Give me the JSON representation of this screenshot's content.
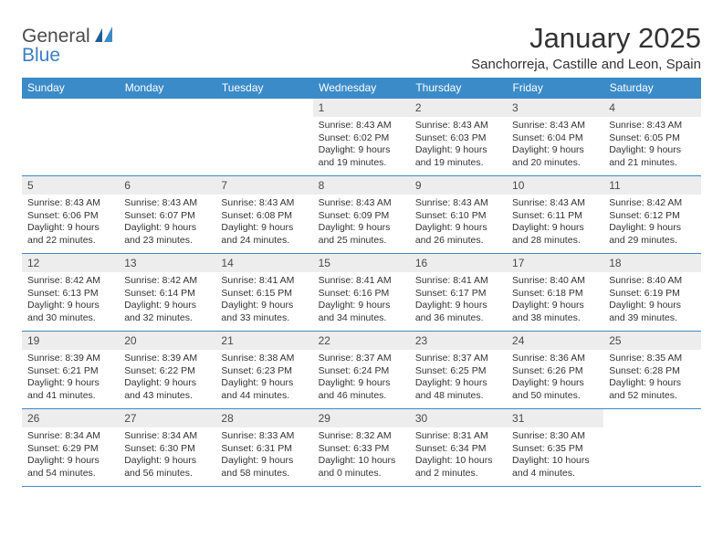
{
  "logo": {
    "part1": "General",
    "part2": "Blue"
  },
  "title": "January 2025",
  "location": "Sanchorreja, Castille and Leon, Spain",
  "colors": {
    "header_row": "#3b8bc9",
    "header_text": "#ffffff",
    "daynum_bg": "#ededed",
    "border": "#3b8bc9",
    "text": "#333333",
    "logo_gray": "#4a4a4a",
    "logo_blue": "#3b7fc4",
    "background": "#ffffff"
  },
  "weekdays": [
    "Sunday",
    "Monday",
    "Tuesday",
    "Wednesday",
    "Thursday",
    "Friday",
    "Saturday"
  ],
  "table": {
    "font_size_header": 12,
    "font_size_daynum": 12,
    "font_size_body": 10.5
  },
  "weeks": [
    [
      {
        "n": "",
        "t": ""
      },
      {
        "n": "",
        "t": ""
      },
      {
        "n": "",
        "t": ""
      },
      {
        "n": "1",
        "t": "Sunrise: 8:43 AM\nSunset: 6:02 PM\nDaylight: 9 hours and 19 minutes."
      },
      {
        "n": "2",
        "t": "Sunrise: 8:43 AM\nSunset: 6:03 PM\nDaylight: 9 hours and 19 minutes."
      },
      {
        "n": "3",
        "t": "Sunrise: 8:43 AM\nSunset: 6:04 PM\nDaylight: 9 hours and 20 minutes."
      },
      {
        "n": "4",
        "t": "Sunrise: 8:43 AM\nSunset: 6:05 PM\nDaylight: 9 hours and 21 minutes."
      }
    ],
    [
      {
        "n": "5",
        "t": "Sunrise: 8:43 AM\nSunset: 6:06 PM\nDaylight: 9 hours and 22 minutes."
      },
      {
        "n": "6",
        "t": "Sunrise: 8:43 AM\nSunset: 6:07 PM\nDaylight: 9 hours and 23 minutes."
      },
      {
        "n": "7",
        "t": "Sunrise: 8:43 AM\nSunset: 6:08 PM\nDaylight: 9 hours and 24 minutes."
      },
      {
        "n": "8",
        "t": "Sunrise: 8:43 AM\nSunset: 6:09 PM\nDaylight: 9 hours and 25 minutes."
      },
      {
        "n": "9",
        "t": "Sunrise: 8:43 AM\nSunset: 6:10 PM\nDaylight: 9 hours and 26 minutes."
      },
      {
        "n": "10",
        "t": "Sunrise: 8:43 AM\nSunset: 6:11 PM\nDaylight: 9 hours and 28 minutes."
      },
      {
        "n": "11",
        "t": "Sunrise: 8:42 AM\nSunset: 6:12 PM\nDaylight: 9 hours and 29 minutes."
      }
    ],
    [
      {
        "n": "12",
        "t": "Sunrise: 8:42 AM\nSunset: 6:13 PM\nDaylight: 9 hours and 30 minutes."
      },
      {
        "n": "13",
        "t": "Sunrise: 8:42 AM\nSunset: 6:14 PM\nDaylight: 9 hours and 32 minutes."
      },
      {
        "n": "14",
        "t": "Sunrise: 8:41 AM\nSunset: 6:15 PM\nDaylight: 9 hours and 33 minutes."
      },
      {
        "n": "15",
        "t": "Sunrise: 8:41 AM\nSunset: 6:16 PM\nDaylight: 9 hours and 34 minutes."
      },
      {
        "n": "16",
        "t": "Sunrise: 8:41 AM\nSunset: 6:17 PM\nDaylight: 9 hours and 36 minutes."
      },
      {
        "n": "17",
        "t": "Sunrise: 8:40 AM\nSunset: 6:18 PM\nDaylight: 9 hours and 38 minutes."
      },
      {
        "n": "18",
        "t": "Sunrise: 8:40 AM\nSunset: 6:19 PM\nDaylight: 9 hours and 39 minutes."
      }
    ],
    [
      {
        "n": "19",
        "t": "Sunrise: 8:39 AM\nSunset: 6:21 PM\nDaylight: 9 hours and 41 minutes."
      },
      {
        "n": "20",
        "t": "Sunrise: 8:39 AM\nSunset: 6:22 PM\nDaylight: 9 hours and 43 minutes."
      },
      {
        "n": "21",
        "t": "Sunrise: 8:38 AM\nSunset: 6:23 PM\nDaylight: 9 hours and 44 minutes."
      },
      {
        "n": "22",
        "t": "Sunrise: 8:37 AM\nSunset: 6:24 PM\nDaylight: 9 hours and 46 minutes."
      },
      {
        "n": "23",
        "t": "Sunrise: 8:37 AM\nSunset: 6:25 PM\nDaylight: 9 hours and 48 minutes."
      },
      {
        "n": "24",
        "t": "Sunrise: 8:36 AM\nSunset: 6:26 PM\nDaylight: 9 hours and 50 minutes."
      },
      {
        "n": "25",
        "t": "Sunrise: 8:35 AM\nSunset: 6:28 PM\nDaylight: 9 hours and 52 minutes."
      }
    ],
    [
      {
        "n": "26",
        "t": "Sunrise: 8:34 AM\nSunset: 6:29 PM\nDaylight: 9 hours and 54 minutes."
      },
      {
        "n": "27",
        "t": "Sunrise: 8:34 AM\nSunset: 6:30 PM\nDaylight: 9 hours and 56 minutes."
      },
      {
        "n": "28",
        "t": "Sunrise: 8:33 AM\nSunset: 6:31 PM\nDaylight: 9 hours and 58 minutes."
      },
      {
        "n": "29",
        "t": "Sunrise: 8:32 AM\nSunset: 6:33 PM\nDaylight: 10 hours and 0 minutes."
      },
      {
        "n": "30",
        "t": "Sunrise: 8:31 AM\nSunset: 6:34 PM\nDaylight: 10 hours and 2 minutes."
      },
      {
        "n": "31",
        "t": "Sunrise: 8:30 AM\nSunset: 6:35 PM\nDaylight: 10 hours and 4 minutes."
      },
      {
        "n": "",
        "t": ""
      }
    ]
  ]
}
